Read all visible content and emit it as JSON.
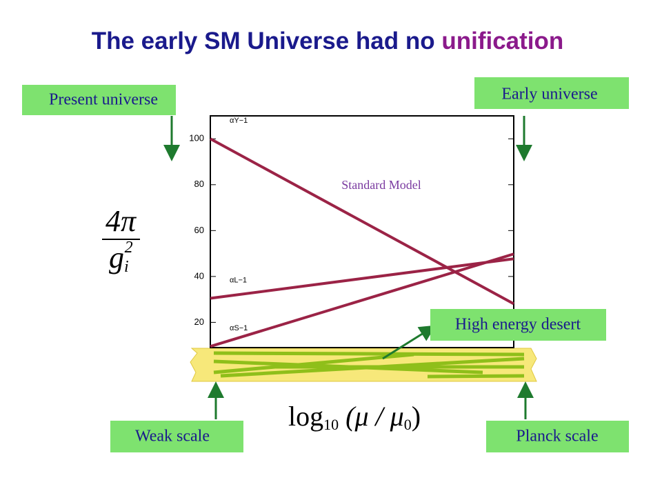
{
  "title": {
    "main": "The early SM Universe had no ",
    "highlight": "unification"
  },
  "labels": {
    "present": "Present universe",
    "early": "Early universe",
    "weak": "Weak scale",
    "planck": "Planck scale",
    "desert": "High energy desert"
  },
  "chart_data": {
    "type": "line",
    "annotation": "Standard Model",
    "ylabel": {
      "numerator": "4π",
      "denominator": "g",
      "sub": "i",
      "sup": "2"
    },
    "xlabel": {
      "log": "log",
      "base": "10",
      "rest": " (μ / μ",
      "zero": "0",
      "close": ")"
    },
    "categories": [
      null,
      null
    ],
    "series": [
      {
        "name": "αY−1",
        "color": "#9b2346",
        "values": [
          100,
          28.1
        ]
      },
      {
        "name": "αL−1",
        "color": "#9b2346",
        "values": [
          30.5,
          47.7
        ]
      },
      {
        "name": "αS−1",
        "color": "#9b2346",
        "values": [
          9.5,
          49.8
        ]
      }
    ],
    "ylim": [
      9,
      110
    ],
    "yticks": [
      20,
      40,
      60,
      80,
      100
    ]
  }
}
